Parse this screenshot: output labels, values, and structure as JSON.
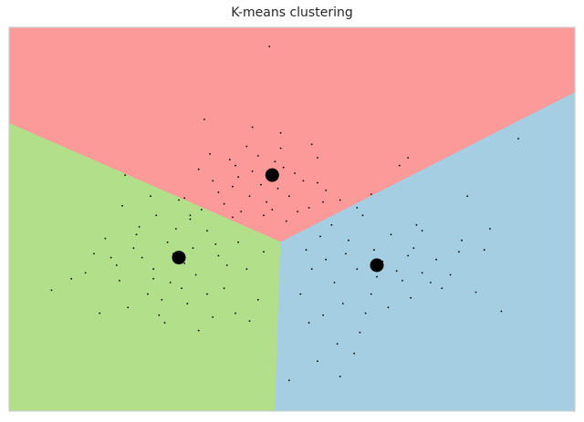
{
  "chart_data": {
    "type": "scatter",
    "title": "K-means clustering",
    "xlabel": "",
    "ylabel": "",
    "xlim": [
      -10,
      10
    ],
    "ylim": [
      -10,
      10
    ],
    "grid": false,
    "legend": "none",
    "regions": [
      {
        "cluster": 0,
        "color": "#fb9a99",
        "polygon": [
          [
            -10,
            5.0
          ],
          [
            -10,
            10
          ],
          [
            10,
            10
          ],
          [
            10,
            6.6
          ],
          [
            -0.4,
            -1.2
          ]
        ]
      },
      {
        "cluster": 1,
        "color": "#b2df8a",
        "polygon": [
          [
            -10,
            -10
          ],
          [
            -10,
            5.0
          ],
          [
            -0.4,
            -1.2
          ],
          [
            -0.6,
            -10
          ]
        ]
      },
      {
        "cluster": 2,
        "color": "#a6cee3",
        "polygon": [
          [
            -0.6,
            -10
          ],
          [
            -0.4,
            -1.2
          ],
          [
            10,
            6.6
          ],
          [
            10,
            -10
          ]
        ]
      }
    ],
    "centroids": [
      {
        "x": -0.7,
        "y": 2.3
      },
      {
        "x": -4.0,
        "y": -2.0
      },
      {
        "x": 3.0,
        "y": -2.4
      }
    ],
    "point_color": "#000000",
    "points": [
      [
        -0.8,
        9.0
      ],
      [
        -3.1,
        5.2
      ],
      [
        -1.4,
        4.8
      ],
      [
        -0.4,
        4.5
      ],
      [
        0.7,
        3.9
      ],
      [
        -1.6,
        3.8
      ],
      [
        -2.2,
        3.1
      ],
      [
        0.9,
        3.2
      ],
      [
        3.8,
        2.8
      ],
      [
        6.2,
        1.2
      ],
      [
        4.1,
        3.2
      ],
      [
        -0.3,
        2.7
      ],
      [
        -1.9,
        2.2
      ],
      [
        0.4,
        2.0
      ],
      [
        -1.1,
        1.8
      ],
      [
        -2.6,
        1.4
      ],
      [
        -0.1,
        1.2
      ],
      [
        1.2,
        1.5
      ],
      [
        -3.8,
        1.1
      ],
      [
        -0.9,
        0.9
      ],
      [
        0.6,
        0.6
      ],
      [
        -1.8,
        0.4
      ],
      [
        -2.4,
        0.8
      ],
      [
        -1.4,
        2.5
      ],
      [
        -0.6,
        3.0
      ],
      [
        -2.8,
        2.0
      ],
      [
        1.7,
        1.0
      ],
      [
        -0.2,
        -0.1
      ],
      [
        -3.6,
        0.2
      ],
      [
        -0.5,
        1.6
      ],
      [
        -2.1,
        1.7
      ],
      [
        0.2,
        0.4
      ],
      [
        1.1,
        0.9
      ],
      [
        -2.9,
        3.4
      ],
      [
        -1.2,
        3.3
      ],
      [
        0.1,
        2.4
      ],
      [
        -1.0,
        0.2
      ],
      [
        2.3,
        0.6
      ],
      [
        -3.3,
        2.6
      ],
      [
        -0.7,
        0.5
      ],
      [
        -1.5,
        1.2
      ],
      [
        0.9,
        1.9
      ],
      [
        2.8,
        1.3
      ],
      [
        -0.4,
        3.7
      ],
      [
        -2.0,
        2.8
      ],
      [
        -5.9,
        2.3
      ],
      [
        -4.0,
        1.0
      ],
      [
        -4.8,
        0.2
      ],
      [
        -3.6,
        0.0
      ],
      [
        -5.4,
        -0.4
      ],
      [
        -3.0,
        -0.6
      ],
      [
        -6.6,
        -1.0
      ],
      [
        -4.4,
        -1.2
      ],
      [
        -2.7,
        -1.3
      ],
      [
        -5.6,
        -1.5
      ],
      [
        -3.8,
        -2.3
      ],
      [
        -4.9,
        -2.6
      ],
      [
        -6.2,
        -2.4
      ],
      [
        -3.4,
        -2.9
      ],
      [
        -4.3,
        -3.3
      ],
      [
        -2.4,
        -3.6
      ],
      [
        -5.1,
        -3.9
      ],
      [
        -8.5,
        -3.7
      ],
      [
        -7.3,
        -2.8
      ],
      [
        -6.1,
        -3.2
      ],
      [
        -3.7,
        -4.4
      ],
      [
        -2.0,
        -4.9
      ],
      [
        -4.7,
        -5.0
      ],
      [
        -6.8,
        -4.9
      ],
      [
        -3.3,
        -5.8
      ],
      [
        -4.5,
        -5.4
      ],
      [
        -1.2,
        -4.2
      ],
      [
        -1.6,
        -2.6
      ],
      [
        -1.0,
        -1.7
      ],
      [
        -2.3,
        -2.4
      ],
      [
        -3.0,
        -3.9
      ],
      [
        -5.3,
        -2.0
      ],
      [
        -4.1,
        -0.5
      ],
      [
        -3.2,
        0.5
      ],
      [
        -5.0,
        1.2
      ],
      [
        -2.6,
        -1.9
      ],
      [
        -1.9,
        -1.2
      ],
      [
        -4.6,
        -4.2
      ],
      [
        -6.4,
        -2.0
      ],
      [
        -7.0,
        -1.8
      ],
      [
        -3.9,
        -3.6
      ],
      [
        -2.8,
        -5.1
      ],
      [
        -5.8,
        -4.6
      ],
      [
        -1.5,
        -5.3
      ],
      [
        -4.2,
        -1.8
      ],
      [
        -5.5,
        -0.8
      ],
      [
        -3.5,
        -1.5
      ],
      [
        -2.1,
        0.1
      ],
      [
        -4.9,
        -3.1
      ],
      [
        -7.8,
        -3.1
      ],
      [
        -6.0,
        0.7
      ],
      [
        1.4,
        -0.3
      ],
      [
        2.5,
        0.2
      ],
      [
        4.6,
        -0.6
      ],
      [
        6.0,
        -1.1
      ],
      [
        1.0,
        -0.9
      ],
      [
        3.5,
        -0.8
      ],
      [
        2.9,
        -1.6
      ],
      [
        4.1,
        -1.9
      ],
      [
        5.1,
        -2.1
      ],
      [
        1.9,
        -1.8
      ],
      [
        0.5,
        -1.6
      ],
      [
        3.2,
        -2.2
      ],
      [
        4.6,
        -2.8
      ],
      [
        2.3,
        -2.6
      ],
      [
        3.9,
        -3.2
      ],
      [
        1.5,
        -3.3
      ],
      [
        0.7,
        -2.6
      ],
      [
        5.6,
        -2.9
      ],
      [
        2.8,
        -3.9
      ],
      [
        4.2,
        -4.1
      ],
      [
        1.8,
        -4.4
      ],
      [
        5.3,
        -3.6
      ],
      [
        3.4,
        -4.6
      ],
      [
        1.1,
        -5.0
      ],
      [
        7.4,
        -4.8
      ],
      [
        2.4,
        -5.9
      ],
      [
        1.6,
        -6.5
      ],
      [
        0.9,
        -7.4
      ],
      [
        2.2,
        -7.0
      ],
      [
        -0.1,
        -8.4
      ],
      [
        1.7,
        -8.2
      ],
      [
        4.3,
        -1.5
      ],
      [
        3.7,
        -2.7
      ],
      [
        0.3,
        -3.9
      ],
      [
        6.8,
        -1.6
      ],
      [
        2.0,
        -1.1
      ],
      [
        1.2,
        -2.1
      ],
      [
        4.9,
        -3.3
      ],
      [
        5.9,
        -1.7
      ],
      [
        2.6,
        -4.9
      ],
      [
        0.6,
        -5.4
      ],
      [
        3.0,
        -3.0
      ],
      [
        4.4,
        -0.3
      ],
      [
        7.0,
        -0.5
      ],
      [
        6.5,
        -3.8
      ],
      [
        8.0,
        4.2
      ]
    ]
  }
}
